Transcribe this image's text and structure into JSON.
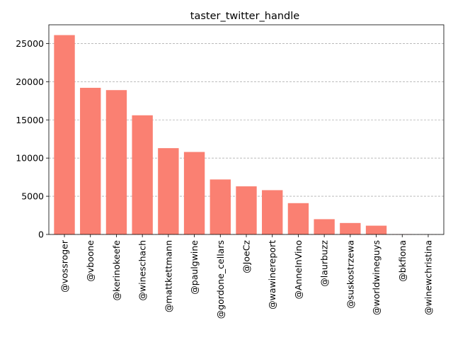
{
  "colors": {
    "bar": "#fa8072",
    "grid": "#b0b0b0",
    "axis": "#000000"
  },
  "chart_data": {
    "type": "bar",
    "title": "taster_twitter_handle",
    "xlabel": "",
    "ylabel": "",
    "categories": [
      "@vossroger",
      "@vboone",
      "@kerinokeefe",
      "@wineschach",
      "@mattkettmann",
      "@paulgwine",
      "@gordone_cellars",
      "@JoeCz",
      "@wawinereport",
      "@AnneInVino",
      "@laurbuzz",
      "@suskostrzewa",
      "@worldwineguys",
      "@bkfiona",
      "@winewchristina"
    ],
    "values": [
      26100,
      19200,
      18900,
      15600,
      11300,
      10800,
      7200,
      6300,
      5800,
      4100,
      2000,
      1500,
      1150,
      30,
      10
    ],
    "ylim": [
      0,
      27450
    ],
    "yticks": [
      0,
      5000,
      10000,
      15000,
      20000,
      25000
    ],
    "grid": "y-dashed",
    "legend": "none"
  }
}
